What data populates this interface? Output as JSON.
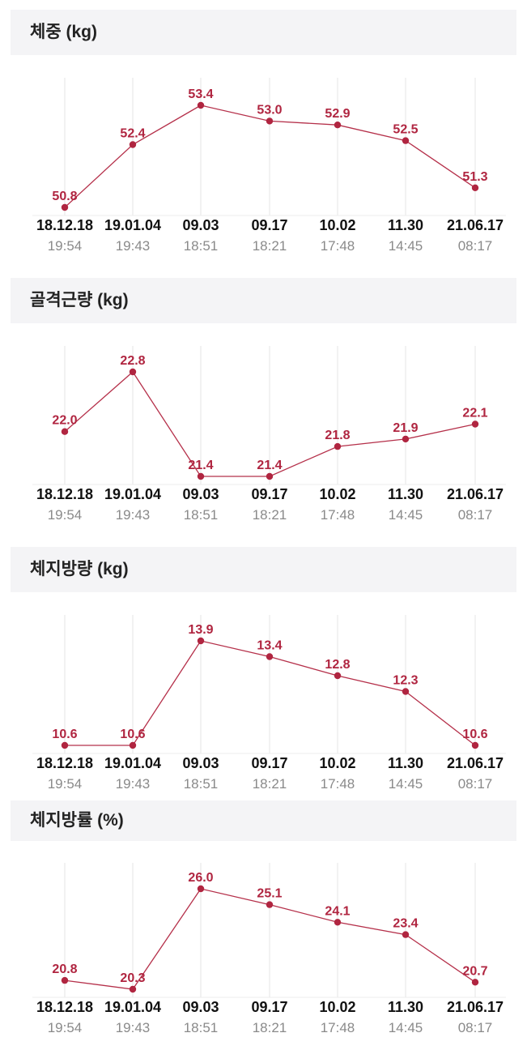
{
  "theme": {
    "accent": "#b5304a",
    "point_color": "#b02540",
    "grid_color": "#e6e6e6",
    "header_bg": "#f4f4f6"
  },
  "x_axis": {
    "dates": [
      "18.12.18",
      "19.01.04",
      "09.03",
      "09.17",
      "10.02",
      "11.30",
      "21.06.17"
    ],
    "times": [
      "19:54",
      "19:43",
      "18:51",
      "18:21",
      "17:48",
      "14:45",
      "08:17"
    ]
  },
  "chart_data": [
    {
      "type": "line",
      "title": "체중 (kg)",
      "categories": [
        "18.12.18 19:54",
        "19.01.04 19:43",
        "09.03 18:51",
        "09.17 18:21",
        "10.02 17:48",
        "11.30 14:45",
        "21.06.17 08:17"
      ],
      "values": [
        50.8,
        52.4,
        53.4,
        53.0,
        52.9,
        52.5,
        51.3
      ],
      "labels": [
        "50.8",
        "52.4",
        "53.4",
        "53.0",
        "52.9",
        "52.5",
        "51.3"
      ],
      "grid": true
    },
    {
      "type": "line",
      "title": "골격근량 (kg)",
      "categories": [
        "18.12.18 19:54",
        "19.01.04 19:43",
        "09.03 18:51",
        "09.17 18:21",
        "10.02 17:48",
        "11.30 14:45",
        "21.06.17 08:17"
      ],
      "values": [
        22.0,
        22.8,
        21.4,
        21.4,
        21.8,
        21.9,
        22.1
      ],
      "labels": [
        "22.0",
        "22.8",
        "21.4",
        "21.4",
        "21.8",
        "21.9",
        "22.1"
      ],
      "grid": true
    },
    {
      "type": "line",
      "title": "체지방량 (kg)",
      "categories": [
        "18.12.18 19:54",
        "19.01.04 19:43",
        "09.03 18:51",
        "09.17 18:21",
        "10.02 17:48",
        "11.30 14:45",
        "21.06.17 08:17"
      ],
      "values": [
        10.6,
        10.6,
        13.9,
        13.4,
        12.8,
        12.3,
        10.6
      ],
      "labels": [
        "10.6",
        "10.6",
        "13.9",
        "13.4",
        "12.8",
        "12.3",
        "10.6"
      ],
      "grid": true
    },
    {
      "type": "line",
      "title": "체지방률 (%)",
      "categories": [
        "18.12.18 19:54",
        "19.01.04 19:43",
        "09.03 18:51",
        "09.17 18:21",
        "10.02 17:48",
        "11.30 14:45",
        "21.06.17 08:17"
      ],
      "values": [
        20.8,
        20.3,
        26.0,
        25.1,
        24.1,
        23.4,
        20.7
      ],
      "labels": [
        "20.8",
        "20.3",
        "26.0",
        "25.1",
        "24.1",
        "23.4",
        "20.7"
      ],
      "grid": true
    }
  ]
}
